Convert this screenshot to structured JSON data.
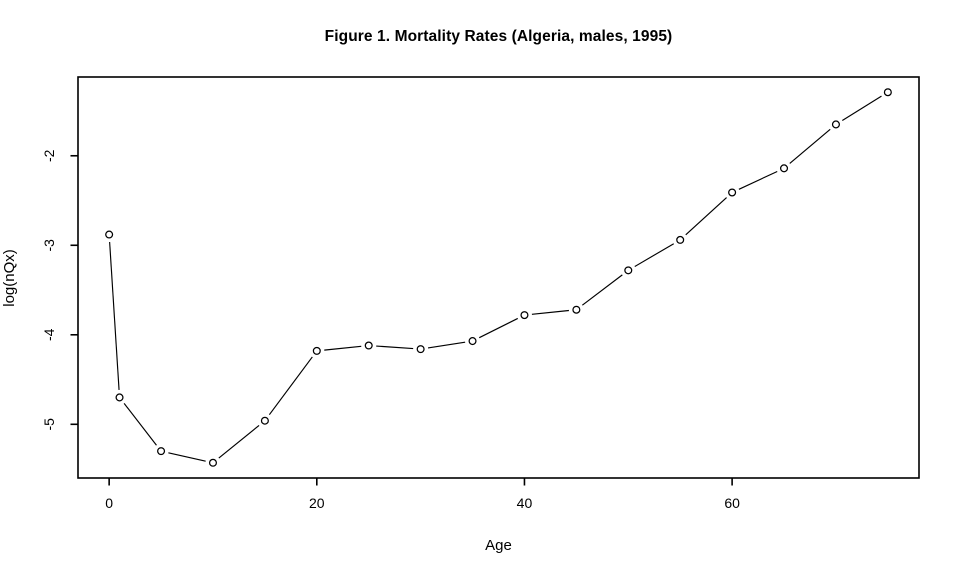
{
  "chart_data": {
    "type": "line",
    "title": "Figure 1. Mortality Rates (Algeria, males, 1995)",
    "xlabel": "Age",
    "ylabel": "log(nQx)",
    "x": [
      0,
      1,
      5,
      10,
      15,
      20,
      25,
      30,
      35,
      40,
      45,
      50,
      55,
      60,
      65,
      70,
      75
    ],
    "y": [
      -2.88,
      -4.7,
      -5.3,
      -5.43,
      -4.96,
      -4.18,
      -4.12,
      -4.16,
      -4.07,
      -3.78,
      -3.72,
      -3.28,
      -2.94,
      -2.41,
      -2.14,
      -1.65,
      -1.29
    ],
    "xticks": [
      0,
      20,
      40,
      60
    ],
    "yticks": [
      -2,
      -3,
      -4,
      -5
    ],
    "xlim": [
      -3,
      78
    ],
    "ylim": [
      -5.6,
      -1.12
    ],
    "marker": "open-circle",
    "line_color": "#000000",
    "axis_color": "#000000",
    "background": "#ffffff",
    "grid": "off",
    "legend": "none"
  }
}
